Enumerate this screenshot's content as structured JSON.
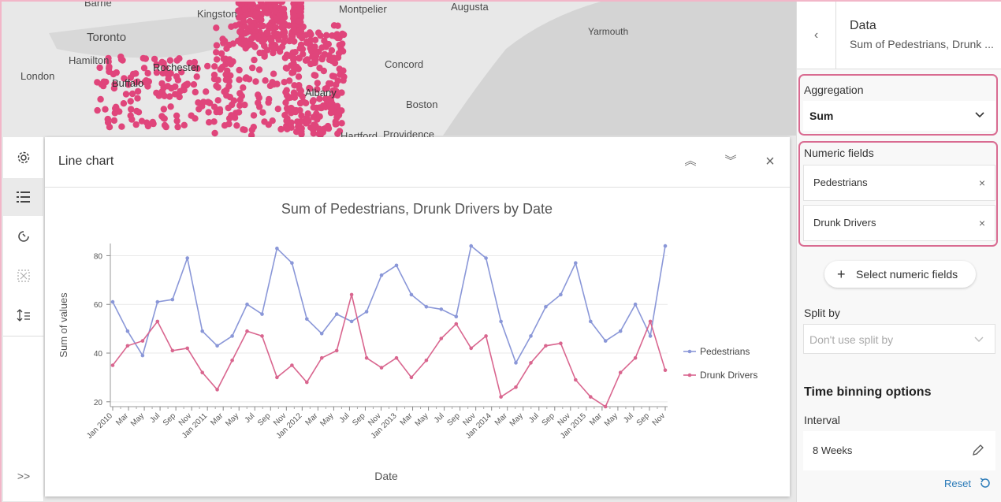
{
  "map": {
    "cities": [
      {
        "name": "Barrie"
      },
      {
        "name": "Kingston"
      },
      {
        "name": "Montpelier"
      },
      {
        "name": "Augusta"
      },
      {
        "name": "Yarmouth"
      },
      {
        "name": "Toronto"
      },
      {
        "name": "Hamilton"
      },
      {
        "name": "Rochester"
      },
      {
        "name": "Concord"
      },
      {
        "name": "London"
      },
      {
        "name": "Buffalo"
      },
      {
        "name": "Albany"
      },
      {
        "name": "Boston"
      },
      {
        "name": "Hartford"
      },
      {
        "name": "Providence"
      }
    ],
    "point_color": "#e0457b"
  },
  "toolbar": {
    "icons": [
      "gear-icon",
      "list-icon",
      "refresh-icon",
      "selection-icon",
      "sort-icon",
      "expand-icon"
    ],
    "expand_label": ">>"
  },
  "chart_panel": {
    "title": "Line chart",
    "collapse_up_label": "︽",
    "collapse_down_label": "︾",
    "close_label": "×"
  },
  "chart_data": {
    "type": "line",
    "title": "Sum of Pedestrians, Drunk Drivers by Date",
    "xlabel": "Date",
    "ylabel": "Sum of values",
    "ylim": [
      18,
      85
    ],
    "yticks": [
      20,
      40,
      60,
      80
    ],
    "tick_labels": [
      "Jan 2010",
      "Mar",
      "May",
      "Jul",
      "Sep",
      "Nov",
      "Jan 2011",
      "Mar",
      "May",
      "Jul",
      "Sep",
      "Nov",
      "Jan 2012",
      "Mar",
      "May",
      "Jul",
      "Sep",
      "Nov",
      "Jan 2013",
      "Mar",
      "May",
      "Jul",
      "Sep",
      "Nov",
      "Jan 2014",
      "Mar",
      "May",
      "Jul",
      "Sep",
      "Nov",
      "Jan 2015",
      "Mar",
      "May",
      "Jul",
      "Sep",
      "Nov"
    ],
    "series": [
      {
        "name": "Pedestrians",
        "color": "#8a97d8",
        "values": [
          61,
          49,
          39,
          61,
          62,
          79,
          49,
          43,
          47,
          60,
          56,
          83,
          77,
          54,
          48,
          56,
          53,
          57,
          72,
          76,
          64,
          59,
          58,
          55,
          84,
          79,
          53,
          36,
          47,
          59,
          64,
          77,
          53,
          45,
          49,
          60,
          47,
          84
        ]
      },
      {
        "name": "Drunk Drivers",
        "color": "#d9668f",
        "values": [
          35,
          43,
          45,
          53,
          41,
          42,
          32,
          25,
          37,
          49,
          47,
          30,
          35,
          28,
          38,
          41,
          64,
          38,
          34,
          38,
          30,
          37,
          46,
          52,
          42,
          47,
          22,
          26,
          36,
          43,
          44,
          29,
          22,
          18,
          32,
          38,
          53,
          33
        ]
      }
    ],
    "legend_position": "right",
    "grid": true
  },
  "side_panel": {
    "back_label": "‹",
    "title": "Data",
    "subtitle": "Sum of Pedestrians, Drunk ...",
    "aggregation_label": "Aggregation",
    "aggregation_value": "Sum",
    "numeric_fields_label": "Numeric fields",
    "numeric_fields": [
      "Pedestrians",
      "Drunk Drivers"
    ],
    "remove_label": "×",
    "add_fields_label": "Select numeric fields",
    "add_plus": "+",
    "split_by_label": "Split by",
    "split_by_placeholder": "Don't use split by",
    "time_binning_heading": "Time binning options",
    "interval_label": "Interval",
    "interval_value": "8 Weeks",
    "reset_label": "Reset",
    "accent_color": "#d96b91"
  }
}
